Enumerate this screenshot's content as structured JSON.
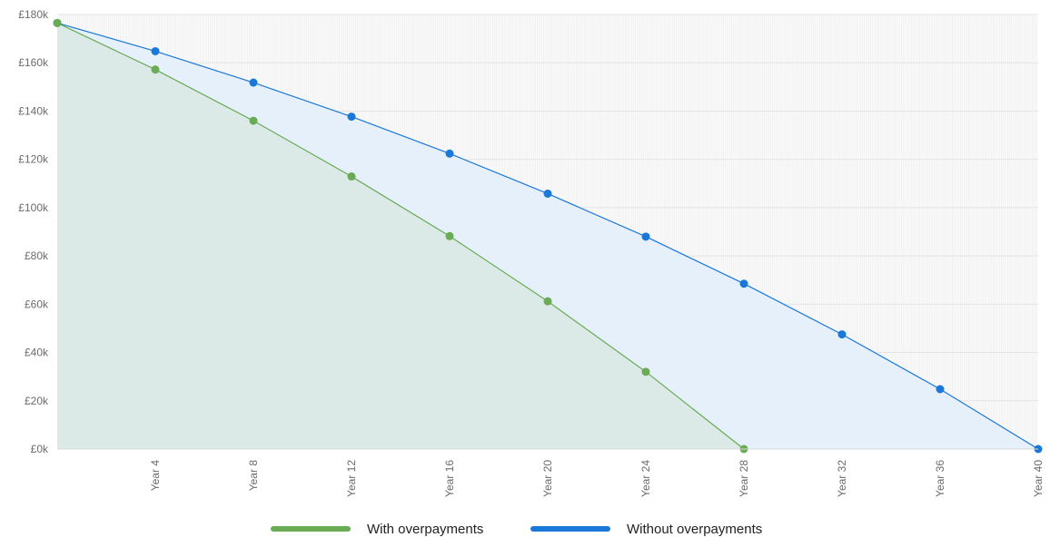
{
  "chart_data": {
    "type": "area",
    "title": "",
    "xlabel": "",
    "ylabel": "",
    "x_ticks": [
      "Year 4",
      "Year 8",
      "Year 12",
      "Year 16",
      "Year 20",
      "Year 24",
      "Year 28",
      "Year 32",
      "Year 36",
      "Year 40"
    ],
    "y_ticks": [
      "£0k",
      "£20k",
      "£40k",
      "£60k",
      "£80k",
      "£100k",
      "£120k",
      "£140k",
      "£160k",
      "£180k"
    ],
    "xlim": [
      0,
      40
    ],
    "ylim": [
      0,
      180000
    ],
    "grid": true,
    "legend_position": "bottom-center",
    "series": [
      {
        "name": "Without overpayments",
        "color": "#1a78d8",
        "fill": "#e5f0fa",
        "x": [
          0,
          4,
          8,
          12,
          16,
          20,
          24,
          28,
          32,
          36,
          40
        ],
        "values": [
          176500,
          164800,
          151800,
          137700,
          122400,
          105800,
          88000,
          68500,
          47500,
          24800,
          0
        ]
      },
      {
        "name": "With overpayments",
        "color": "#6aab55",
        "fill": "#dbe9e6",
        "x": [
          0,
          4,
          8,
          12,
          16,
          20,
          24,
          28
        ],
        "values": [
          176500,
          157200,
          136000,
          112900,
          88200,
          61200,
          32000,
          0
        ]
      }
    ]
  },
  "legend": {
    "items": [
      {
        "label": "With overpayments",
        "color": "#6aab55"
      },
      {
        "label": "Without overpayments",
        "color": "#1a78d8"
      }
    ]
  }
}
